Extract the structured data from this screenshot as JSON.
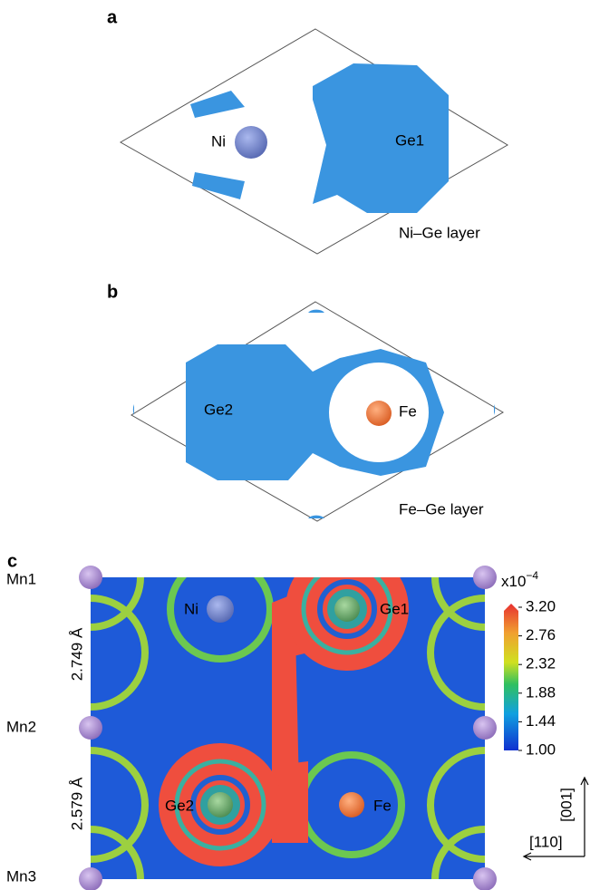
{
  "panel_a": {
    "label": "a",
    "atom_labels": [
      "Ni",
      "Ge1"
    ],
    "caption": "Ni–Ge layer"
  },
  "panel_b": {
    "label": "b",
    "atom_labels": [
      "Ge2",
      "Fe"
    ],
    "caption": "Fe–Ge layer"
  },
  "panel_c": {
    "label": "c",
    "site_labels": [
      "Mn1",
      "Mn2",
      "Mn3"
    ],
    "distances": [
      "2.749 Å",
      "2.579 Å"
    ],
    "atom_labels": [
      "Ni",
      "Ge1",
      "Ge2",
      "Fe"
    ],
    "colorbar": {
      "unit": "x10",
      "exponent": "−4",
      "ticks": [
        "3.20",
        "2.76",
        "2.32",
        "1.88",
        "1.44",
        "1.00"
      ]
    },
    "directions": [
      "[001]",
      "[110]"
    ]
  }
}
